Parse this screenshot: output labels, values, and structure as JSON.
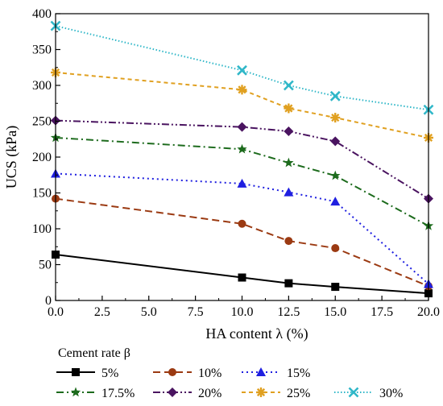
{
  "chart_data": {
    "type": "line",
    "xlabel": "HA content λ (%)",
    "ylabel": "UCS (kPa)",
    "xlim": [
      0,
      20
    ],
    "ylim": [
      0,
      400
    ],
    "xticks": [
      "0.0",
      "2.5",
      "5.0",
      "7.5",
      "10.0",
      "12.5",
      "15.0",
      "17.5",
      "20.0"
    ],
    "yticks": [
      "0",
      "50",
      "100",
      "150",
      "200",
      "250",
      "300",
      "350",
      "400"
    ],
    "x": [
      0,
      10,
      12.5,
      15,
      20
    ],
    "grid": false,
    "legend_title": "Cement rate β",
    "legend_position": "bottom",
    "series": [
      {
        "name": "5%",
        "values": [
          64,
          32,
          24,
          19,
          10
        ],
        "color": "#000000",
        "dash": "solid",
        "marker": "square"
      },
      {
        "name": "10%",
        "values": [
          142,
          107,
          83,
          73,
          20
        ],
        "color": "#9b3a12",
        "dash": "dashed",
        "marker": "circle"
      },
      {
        "name": "15%",
        "values": [
          177,
          163,
          151,
          138,
          23
        ],
        "color": "#1f1fe0",
        "dash": "dotted",
        "marker": "triangle"
      },
      {
        "name": "17.5%",
        "values": [
          227,
          211,
          192,
          174,
          104
        ],
        "color": "#1d6b1d",
        "dash": "dashdot",
        "marker": "star"
      },
      {
        "name": "20%",
        "values": [
          251,
          242,
          236,
          222,
          142
        ],
        "color": "#4a1460",
        "dash": "dashdotdot",
        "marker": "diamond"
      },
      {
        "name": "25%",
        "values": [
          318,
          294,
          268,
          255,
          227
        ],
        "color": "#e0a020",
        "dash": "shortdash",
        "marker": "asterisk"
      },
      {
        "name": "30%",
        "values": [
          383,
          321,
          300,
          285,
          266
        ],
        "color": "#2fb7c8",
        "dash": "densedot",
        "marker": "x"
      }
    ]
  }
}
